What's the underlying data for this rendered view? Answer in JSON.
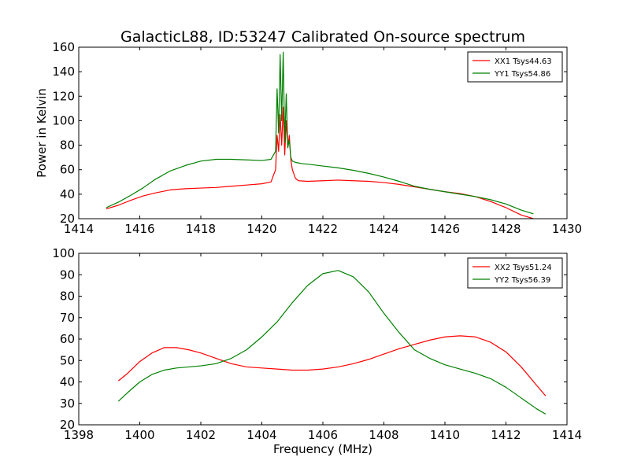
{
  "chart_data": [
    {
      "type": "line",
      "title": "GalacticL88, ID:53247 Calibrated On-source spectrum",
      "xlabel": "",
      "ylabel": "Power in Kelvin",
      "xlim": [
        1414,
        1430
      ],
      "ylim": [
        20,
        160
      ],
      "xticks": [
        1414,
        1416,
        1418,
        1420,
        1422,
        1424,
        1426,
        1428,
        1430
      ],
      "yticks": [
        20,
        40,
        60,
        80,
        100,
        120,
        140,
        160
      ],
      "legend_position": "top-right",
      "grid": false,
      "series": [
        {
          "name": "XX1 Tsys44.63",
          "color": "#ff0000",
          "x": [
            1414.9,
            1415.3,
            1415.7,
            1416.1,
            1416.5,
            1417.0,
            1417.5,
            1418.0,
            1418.5,
            1419.0,
            1419.5,
            1420.0,
            1420.3,
            1420.45,
            1420.5,
            1420.55,
            1420.6,
            1420.65,
            1420.7,
            1420.75,
            1420.8,
            1420.85,
            1420.9,
            1420.95,
            1421.0,
            1421.1,
            1421.2,
            1421.5,
            1422.0,
            1422.5,
            1423.0,
            1423.5,
            1424.0,
            1424.5,
            1425.0,
            1425.5,
            1426.0,
            1426.5,
            1427.0,
            1427.5,
            1428.0,
            1428.5,
            1428.9
          ],
          "y": [
            28,
            31,
            35,
            38.5,
            41,
            43.5,
            44.5,
            45,
            45.5,
            46.5,
            47.5,
            48.5,
            50,
            60,
            88,
            75,
            105,
            80,
            111,
            72,
            100,
            78,
            88,
            68,
            60,
            53,
            51,
            50.5,
            51,
            51.5,
            51,
            50.5,
            49.5,
            48,
            46,
            44,
            42,
            40.5,
            38,
            34,
            29,
            23,
            20
          ]
        },
        {
          "name": "YY1 Tsys54.86",
          "color": "#008000",
          "x": [
            1414.9,
            1415.3,
            1415.7,
            1416.1,
            1416.5,
            1417.0,
            1417.5,
            1418.0,
            1418.5,
            1419.0,
            1419.5,
            1420.0,
            1420.3,
            1420.45,
            1420.5,
            1420.55,
            1420.6,
            1420.65,
            1420.7,
            1420.75,
            1420.8,
            1420.85,
            1420.9,
            1420.95,
            1421.0,
            1421.1,
            1421.3,
            1421.5,
            1422.0,
            1422.5,
            1423.0,
            1423.5,
            1424.0,
            1424.5,
            1425.0,
            1425.5,
            1426.0,
            1426.5,
            1427.0,
            1427.5,
            1428.0,
            1428.5,
            1428.9
          ],
          "y": [
            29,
            33.5,
            39,
            45,
            52,
            59,
            63.5,
            67,
            68.5,
            68.5,
            68,
            67.5,
            68.5,
            75,
            126,
            90,
            154,
            100,
            156,
            82,
            122,
            78,
            84,
            70,
            67,
            66,
            65,
            64.5,
            63,
            61.5,
            59.5,
            57,
            54,
            50.5,
            46.5,
            44,
            42,
            40,
            38,
            35.5,
            32,
            27,
            24
          ]
        }
      ]
    },
    {
      "type": "line",
      "title": "",
      "xlabel": "Frequency (MHz)",
      "ylabel": "",
      "xlim": [
        1398,
        1414
      ],
      "ylim": [
        20,
        100
      ],
      "xticks": [
        1398,
        1400,
        1402,
        1404,
        1406,
        1408,
        1410,
        1412,
        1414
      ],
      "yticks": [
        20,
        30,
        40,
        50,
        60,
        70,
        80,
        90,
        100
      ],
      "legend_position": "top-right",
      "grid": false,
      "series": [
        {
          "name": "XX2 Tsys51.24",
          "color": "#ff0000",
          "x": [
            1399.3,
            1399.6,
            1400.0,
            1400.4,
            1400.8,
            1401.2,
            1401.6,
            1402.0,
            1402.5,
            1403.0,
            1403.5,
            1404.0,
            1404.5,
            1405.0,
            1405.5,
            1406.0,
            1406.5,
            1407.0,
            1407.5,
            1408.0,
            1408.5,
            1409.0,
            1409.5,
            1410.0,
            1410.5,
            1411.0,
            1411.5,
            1412.0,
            1412.5,
            1413.0,
            1413.3
          ],
          "y": [
            40.5,
            44,
            49.5,
            53.5,
            56,
            56,
            55,
            53.5,
            51,
            48.5,
            47,
            46.5,
            46,
            45.5,
            45.5,
            46,
            47,
            48.5,
            50.5,
            53,
            55.5,
            57.5,
            59.5,
            61,
            61.5,
            61,
            58.5,
            54,
            47,
            38.5,
            33.5
          ]
        },
        {
          "name": "YY2 Tsys56.39",
          "color": "#008000",
          "x": [
            1399.3,
            1399.6,
            1400.0,
            1400.4,
            1400.8,
            1401.2,
            1401.6,
            1402.0,
            1402.5,
            1403.0,
            1403.5,
            1404.0,
            1404.5,
            1405.0,
            1405.5,
            1406.0,
            1406.5,
            1407.0,
            1407.5,
            1408.0,
            1408.5,
            1409.0,
            1409.5,
            1410.0,
            1410.5,
            1411.0,
            1411.5,
            1412.0,
            1412.5,
            1413.0,
            1413.3
          ],
          "y": [
            31,
            35,
            40,
            43.5,
            45.5,
            46.5,
            47,
            47.5,
            48.5,
            51,
            55,
            61,
            68,
            77,
            85,
            90.5,
            92,
            89,
            82,
            72,
            63,
            55,
            51,
            48,
            46,
            44,
            41.5,
            37.5,
            32.5,
            27.5,
            25
          ]
        }
      ]
    }
  ]
}
